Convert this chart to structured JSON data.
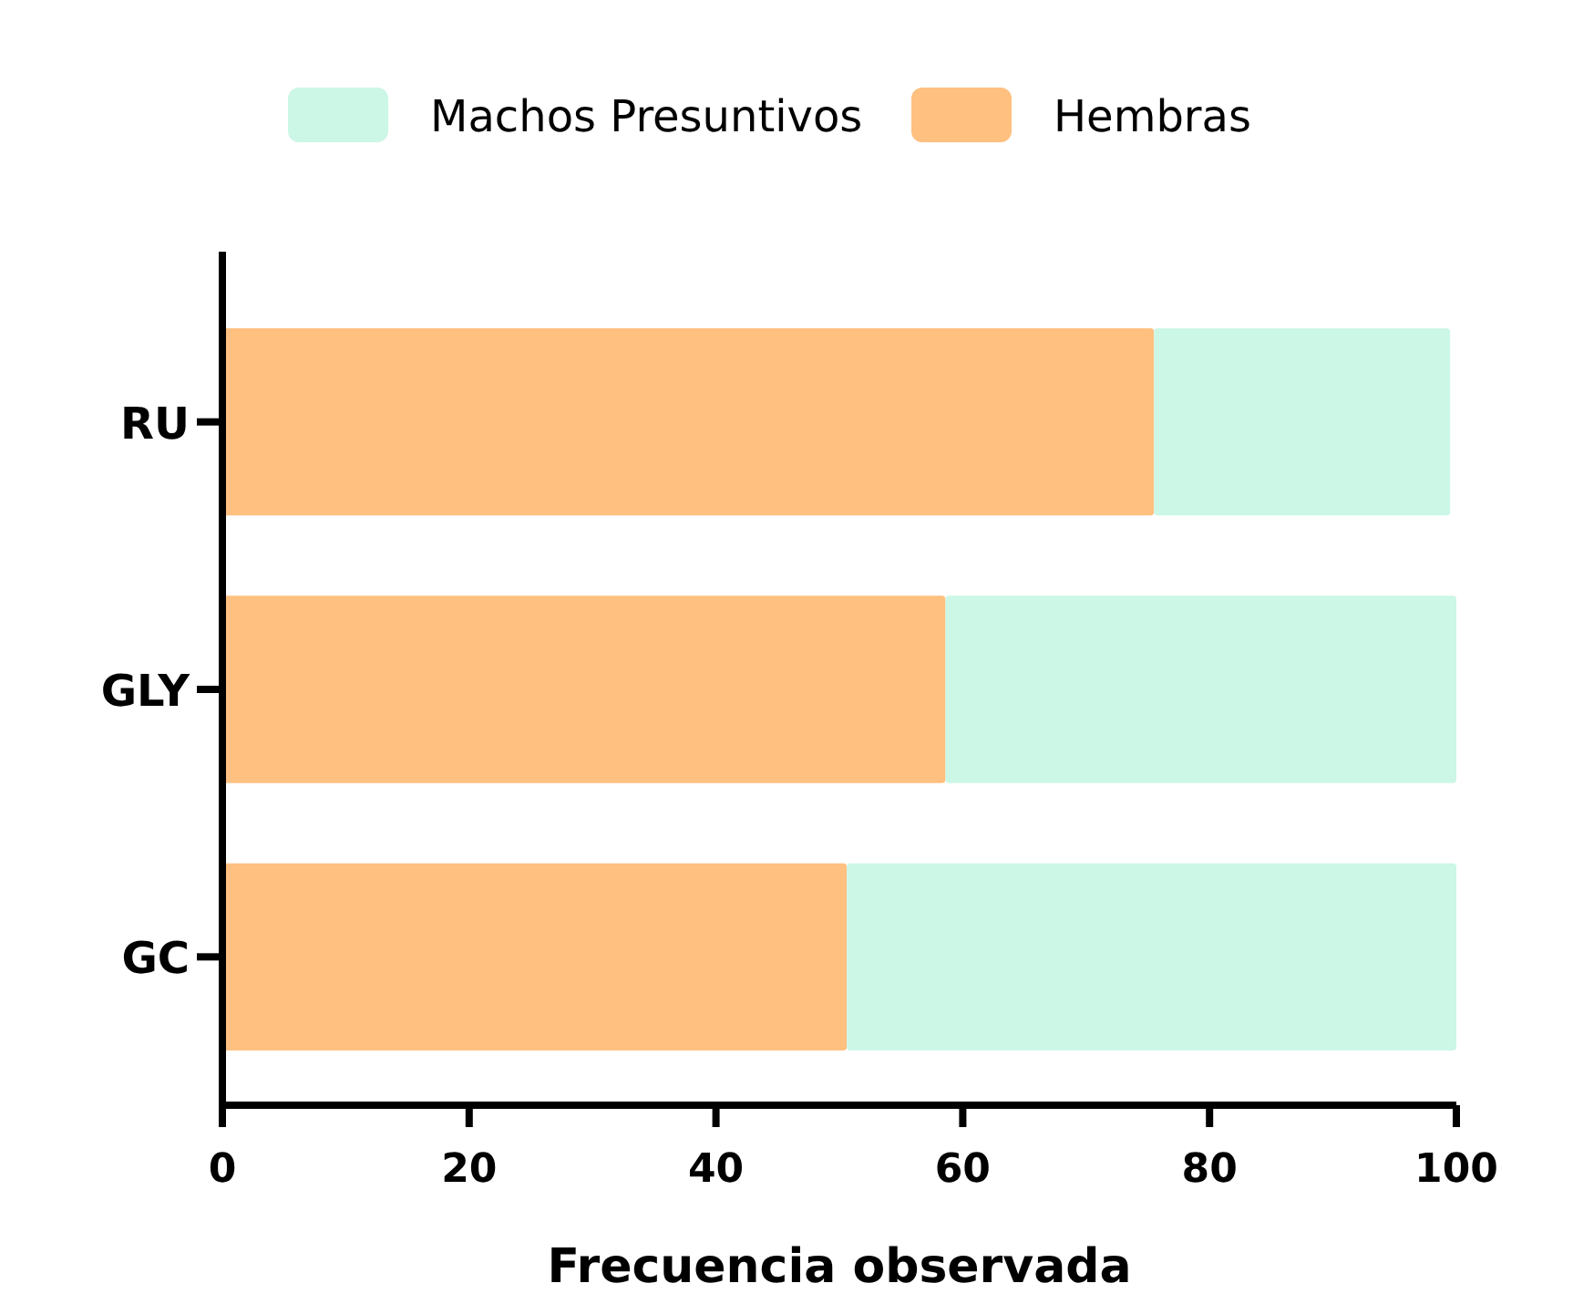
{
  "chart_data": {
    "type": "bar",
    "orientation": "horizontal",
    "stacked": true,
    "xlabel": "Frecuencia observada",
    "categories": [
      "RU",
      "GLY",
      "GC"
    ],
    "series": [
      {
        "name": "Hembras",
        "color": "#ffc080",
        "values": [
          75.5,
          58.6,
          50.6
        ]
      },
      {
        "name": "Machos Presuntivos",
        "color": "#ccf7e6",
        "values": [
          24,
          41.4,
          49.4
        ]
      }
    ],
    "xlim": [
      0,
      100
    ],
    "xticks": [
      0,
      20,
      40,
      60,
      80,
      100
    ],
    "legend": "top",
    "grid": false
  }
}
